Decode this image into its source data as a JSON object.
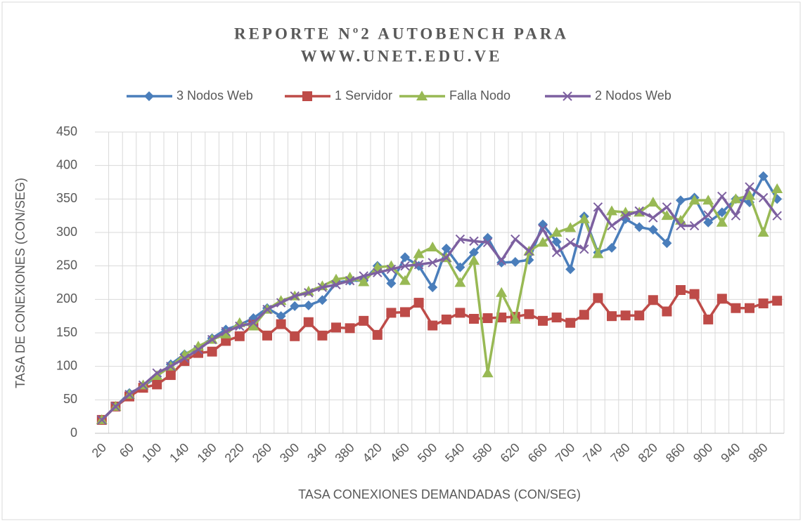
{
  "chart_data": {
    "type": "line",
    "title": [
      "REPORTE Nº2 AUTOBENCH PARA",
      "WWW.UNET.EDU.VE"
    ],
    "x_label": "TASA CONEXIONES DEMANDADAS (CON/SEG)",
    "y_label": "TASA DE CONEXIONES (CON/SEG)",
    "categories": [
      20,
      null,
      60,
      null,
      100,
      null,
      140,
      null,
      180,
      null,
      220,
      null,
      260,
      null,
      300,
      null,
      340,
      null,
      380,
      null,
      420,
      null,
      460,
      null,
      500,
      null,
      540,
      null,
      580,
      null,
      620,
      null,
      660,
      null,
      700,
      null,
      740,
      null,
      780,
      null,
      820,
      null,
      860,
      null,
      900,
      null,
      940,
      null,
      980,
      null
    ],
    "ylim": [
      0,
      450
    ],
    "yticks": [
      0,
      50,
      100,
      150,
      200,
      250,
      300,
      350,
      400,
      450
    ],
    "grid": true,
    "legend": "top",
    "series": [
      {
        "name": "3 Nodos Web",
        "color": "#4a7ebb",
        "marker": "diamond",
        "values": [
          20,
          40,
          60,
          70,
          85,
          103,
          118,
          128,
          142,
          155,
          162,
          172,
          187,
          175,
          190,
          191,
          199,
          225,
          228,
          228,
          250,
          224,
          263,
          250,
          218,
          276,
          248,
          270,
          292,
          255,
          256,
          259,
          312,
          286,
          245,
          324,
          270,
          277,
          320,
          308,
          304,
          284,
          348,
          352,
          315,
          330,
          350,
          345,
          384,
          350
        ]
      },
      {
        "name": "1 Servidor",
        "color": "#be4b48",
        "marker": "square",
        "values": [
          20,
          40,
          55,
          68,
          73,
          87,
          108,
          120,
          122,
          138,
          145,
          162,
          146,
          163,
          145,
          166,
          146,
          158,
          157,
          168,
          147,
          180,
          181,
          195,
          161,
          170,
          180,
          171,
          172,
          173,
          174,
          178,
          168,
          173,
          165,
          177,
          202,
          175,
          176,
          176,
          199,
          182,
          214,
          208,
          170,
          201,
          187,
          187,
          194,
          198
        ]
      },
      {
        "name": "Falla Nodo",
        "color": "#98b954",
        "marker": "triangle",
        "values": [
          20,
          40,
          58,
          72,
          86,
          100,
          117,
          130,
          140,
          148,
          165,
          160,
          185,
          198,
          205,
          212,
          220,
          230,
          233,
          226,
          248,
          250,
          228,
          268,
          278,
          262,
          225,
          258,
          90,
          210,
          170,
          272,
          285,
          300,
          307,
          320,
          268,
          332,
          330,
          330,
          345,
          325,
          318,
          348,
          348,
          315,
          350,
          355,
          300,
          365
        ]
      },
      {
        "name": "2 Nodos Web",
        "color": "#7d60a0",
        "marker": "x",
        "values": [
          20,
          40,
          58,
          72,
          90,
          100,
          112,
          125,
          140,
          152,
          160,
          165,
          185,
          195,
          205,
          210,
          218,
          222,
          228,
          235,
          240,
          245,
          250,
          252,
          255,
          262,
          290,
          287,
          285,
          258,
          290,
          272,
          305,
          270,
          285,
          275,
          338,
          310,
          325,
          332,
          322,
          338,
          310,
          310,
          326,
          354,
          325,
          368,
          352,
          325
        ]
      }
    ]
  }
}
